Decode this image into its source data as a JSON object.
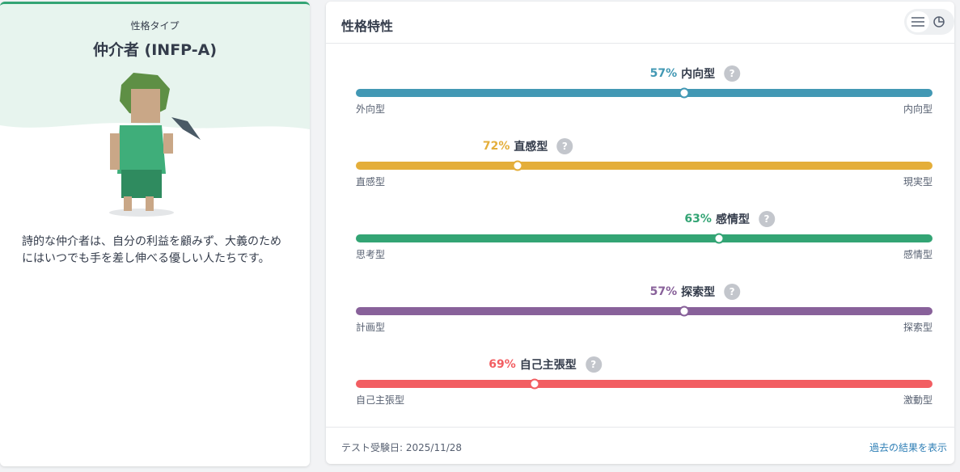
{
  "profile": {
    "kicker": "性格タイプ",
    "title": "仲介者 (INFP-A)",
    "description": "詩的な仲介者は、自分の利益を顧みず、大義のためにはいつでも手を差し伸べる優しい人たちです。"
  },
  "traits_panel": {
    "title": "性格特性",
    "traits": [
      {
        "percent": {
          "value": 57,
          "label": "57%"
        },
        "name": "内向型",
        "left": "外向型",
        "right": "内向型",
        "color": "#4298b4"
      },
      {
        "percent": {
          "value": 72,
          "label": "72%"
        },
        "name": "直感型",
        "left": "直感型",
        "right": "現実型",
        "color": "#e4ae3a"
      },
      {
        "percent": {
          "value": 63,
          "label": "63%"
        },
        "name": "感情型",
        "left": "思考型",
        "right": "感情型",
        "color": "#33a474"
      },
      {
        "percent": {
          "value": 57,
          "label": "57%"
        },
        "name": "探索型",
        "left": "計画型",
        "right": "探索型",
        "color": "#88619a"
      },
      {
        "percent": {
          "value": 69,
          "label": "69%"
        },
        "name": "自己主張型",
        "left": "自己主張型",
        "right": "激動型",
        "color": "#f25e62"
      }
    ],
    "footer_date": "テスト受験日: 2025/11/28",
    "footer_link": "過去の結果を表示"
  }
}
